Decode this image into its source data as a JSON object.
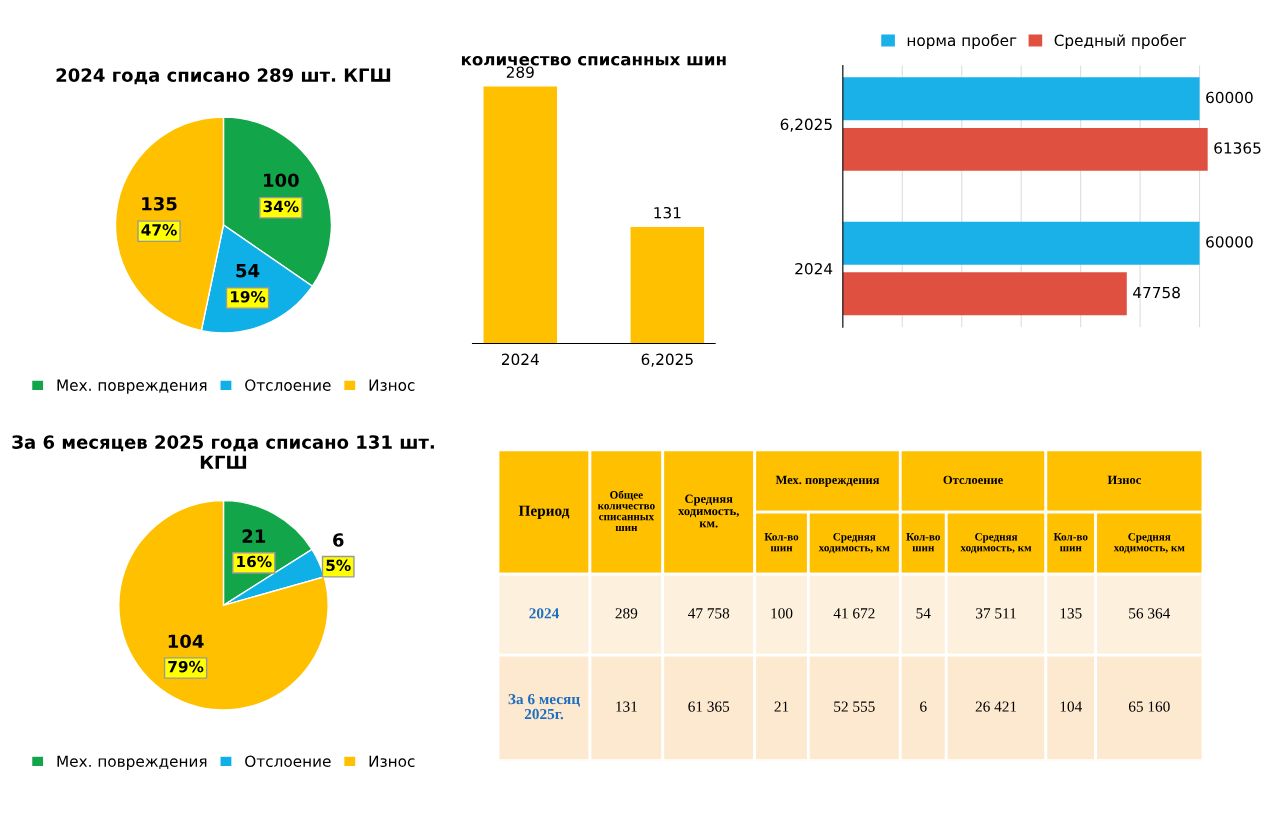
{
  "chart_data": [
    {
      "type": "pie",
      "title": "2024 года списано 289 шт. КГШ",
      "categories": [
        "Мех. повреждения",
        "Отслоение",
        "Износ"
      ],
      "values": [
        100,
        54,
        135
      ],
      "colors": [
        "#13a54a",
        "#0fb0e8",
        "#ffc000"
      ],
      "value_labels": [
        "100\n34%",
        "54\n19%",
        "135\n47%"
      ],
      "legend": "bottom"
    },
    {
      "type": "bar",
      "title": "количество списанных шин",
      "categories": [
        "2024",
        "6,2025"
      ],
      "values": [
        289,
        131
      ],
      "color": "#ffc000",
      "data_labels": true,
      "tick_labels": "x"
    },
    {
      "type": "bar",
      "orientation": "horizontal",
      "categories": [
        "6,2025",
        "2024"
      ],
      "series": [
        {
          "name": "норма пробег",
          "color": "#1ab0e8",
          "values": [
            60000,
            60000
          ]
        },
        {
          "name": "Средный пробег",
          "color": "#e05040",
          "values": [
            61365,
            47758
          ]
        }
      ],
      "data_labels": true,
      "tick_labels": "y",
      "legend": "top",
      "grid": "x",
      "xticks": [
        {
          "value": 0,
          "label": null
        },
        {
          "value": 10000,
          "label": null
        },
        {
          "value": 20000,
          "label": null
        },
        {
          "value": 30000,
          "label": null
        },
        {
          "value": 40000,
          "label": null
        },
        {
          "value": 50000,
          "label": null
        },
        {
          "value": 60000,
          "label": null
        }
      ]
    },
    {
      "type": "pie",
      "title": "За 6 месяцев 2025 года списано 131 шт. КГШ",
      "categories": [
        "Мех. повреждения",
        "Отслоение",
        "Износ"
      ],
      "values": [
        21,
        6,
        104
      ],
      "colors": [
        "#13a54a",
        "#0fb0e8",
        "#ffc000"
      ],
      "value_labels": [
        "21\n16%",
        "6\n5%",
        "104\n79%"
      ],
      "legend": "bottom"
    },
    {
      "type": "other",
      "annotations": [
        "Период",
        "Общее количество списанных шин",
        "Средняя ходимость, км.",
        "Мех. повреждения",
        "Отслоение",
        "Износ",
        "Кол-во шин",
        "Средняя ходимость, км",
        "Кол-во шин",
        "Средняя ходимость, км",
        "Кол-во шин",
        "Средняя ходимость, км",
        "2024",
        "289",
        "47 758",
        "100",
        "41 672",
        "54",
        "37 511",
        "135",
        "56 364",
        "За 6 месяц 2025г.",
        "131",
        "61 365",
        "21",
        "52 555",
        "6",
        "26 421",
        "104",
        "65 160"
      ]
    }
  ]
}
